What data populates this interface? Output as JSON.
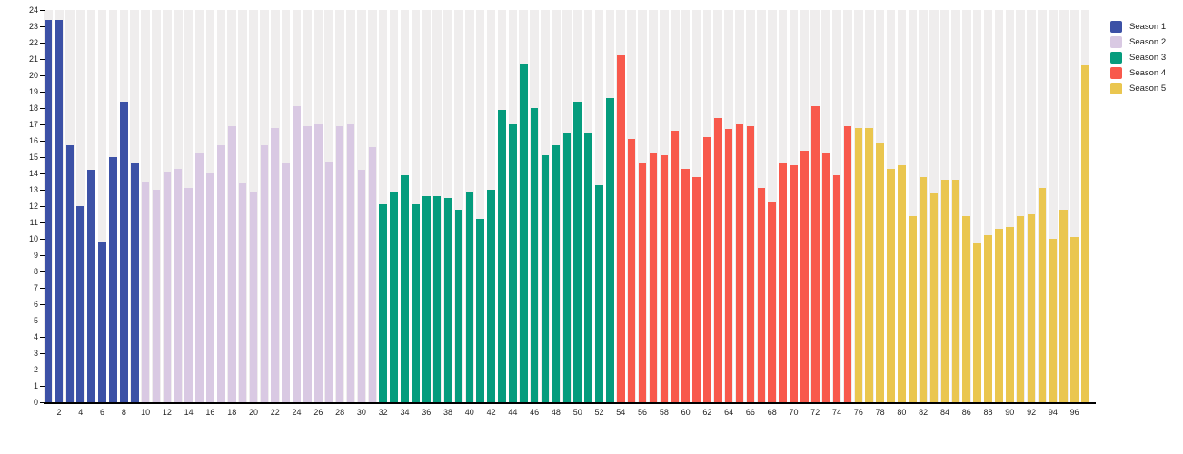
{
  "chart_data": {
    "type": "bar",
    "title": "",
    "xlabel": "",
    "ylabel": "",
    "ylim": [
      0,
      24
    ],
    "y_tick_step": 1,
    "x_tick_step": 2,
    "x_range": [
      1,
      97
    ],
    "grid": "off",
    "background_column_stripes": true,
    "legend_position": "top-right-outside",
    "series": [
      {
        "name": "Season 1",
        "color": "#3C51A6",
        "episodes_start": 1,
        "values": [
          23.4,
          23.4,
          15.7,
          12.0,
          14.2,
          9.8,
          15.0,
          18.4,
          14.6
        ]
      },
      {
        "name": "Season 2",
        "color": "#D9C9E3",
        "episodes_start": 10,
        "values": [
          13.5,
          13.0,
          14.1,
          14.3,
          13.1,
          15.3,
          14.0,
          15.7,
          16.9,
          13.4,
          12.9,
          15.7,
          16.8,
          14.6,
          18.1,
          16.9,
          17.0,
          14.7,
          16.9,
          17.0,
          14.2,
          15.6
        ]
      },
      {
        "name": "Season 3",
        "color": "#059C7D",
        "episodes_start": 32,
        "values": [
          12.1,
          12.9,
          13.9,
          12.1,
          12.6,
          12.6,
          12.5,
          11.8,
          12.9,
          11.2,
          13.0,
          17.9,
          17.0,
          20.7,
          18.0,
          15.1,
          15.7,
          16.5,
          18.4,
          16.5,
          13.3,
          18.6
        ]
      },
      {
        "name": "Season 4",
        "color": "#F8594C",
        "episodes_start": 54,
        "values": [
          21.2,
          16.1,
          14.6,
          15.3,
          15.1,
          16.6,
          14.3,
          13.8,
          16.2,
          17.4,
          16.7,
          17.0,
          16.9,
          13.1,
          12.2,
          14.6,
          14.5,
          15.4,
          18.1,
          15.3,
          13.9,
          16.9
        ]
      },
      {
        "name": "Season 5",
        "color": "#EAC64F",
        "episodes_start": 76,
        "values": [
          16.8,
          16.8,
          15.9,
          14.3,
          14.5,
          11.4,
          13.8,
          12.8,
          13.6,
          13.6,
          11.4,
          9.7,
          10.2,
          10.6,
          10.7,
          11.4,
          11.5,
          13.1,
          10.0,
          11.8,
          10.1,
          20.6
        ]
      }
    ]
  },
  "axes": {
    "y_ticks": [
      "0",
      "1",
      "2",
      "3",
      "4",
      "5",
      "6",
      "7",
      "8",
      "9",
      "10",
      "11",
      "12",
      "13",
      "14",
      "15",
      "16",
      "17",
      "18",
      "19",
      "20",
      "21",
      "22",
      "23",
      "24"
    ],
    "x_ticks": [
      "2",
      "4",
      "6",
      "8",
      "10",
      "12",
      "14",
      "16",
      "18",
      "20",
      "22",
      "24",
      "26",
      "28",
      "30",
      "32",
      "34",
      "36",
      "38",
      "40",
      "42",
      "44",
      "46",
      "48",
      "50",
      "52",
      "54",
      "56",
      "58",
      "60",
      "62",
      "64",
      "66",
      "68",
      "70",
      "72",
      "74",
      "76",
      "78",
      "80",
      "82",
      "84",
      "86",
      "88",
      "90",
      "92",
      "94",
      "96"
    ]
  },
  "legend": {
    "items": [
      "Season 1",
      "Season 2",
      "Season 3",
      "Season 4",
      "Season 5"
    ]
  },
  "colors": {
    "stripe": "#efeded",
    "axis": "#000000",
    "tick_text": "#222222",
    "background": "#ffffff"
  }
}
